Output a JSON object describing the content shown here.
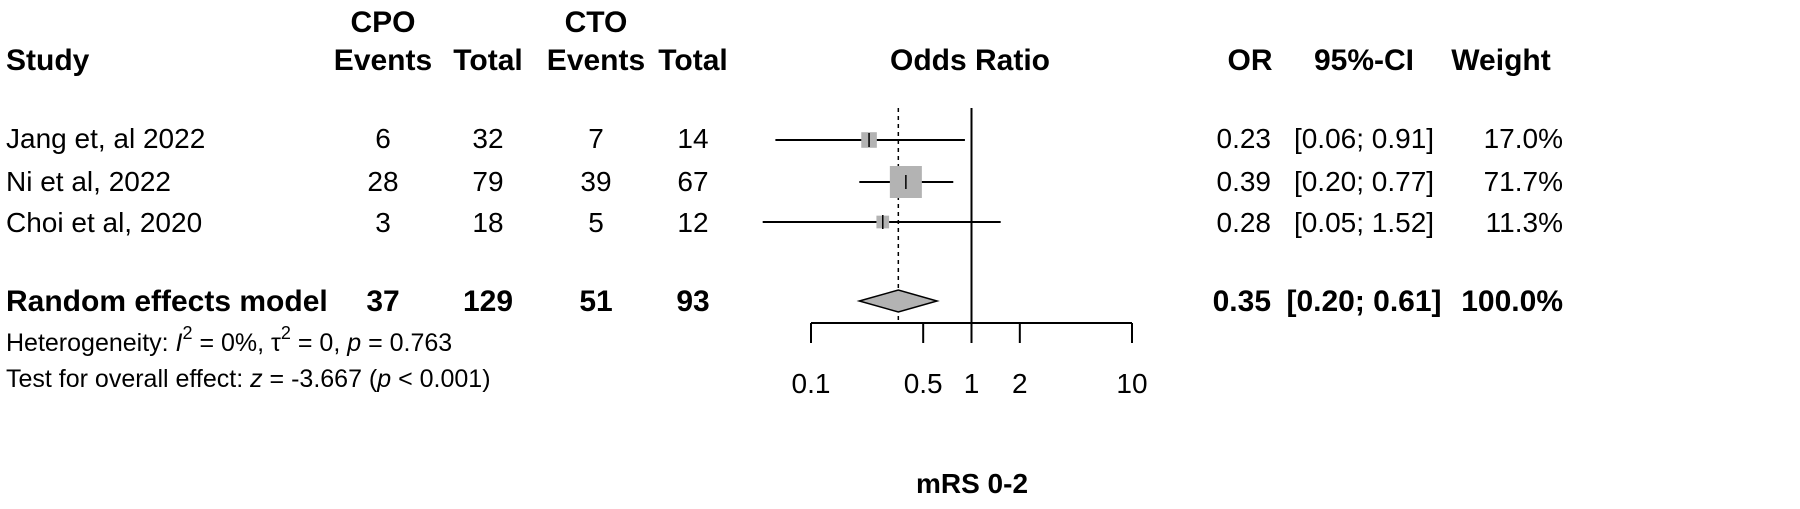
{
  "headers": {
    "study": "Study",
    "group1": "CPO",
    "group2": "CTO",
    "events": "Events",
    "total": "Total",
    "odds_ratio": "Odds Ratio",
    "or": "OR",
    "ci": "95%-CI",
    "weight": "Weight"
  },
  "studies": [
    {
      "name": "Jang et, al 2022",
      "e1": "6",
      "n1": "32",
      "e2": "7",
      "n2": "14",
      "or_text": "0.23",
      "ci_text": "[0.06; 0.91]",
      "weight": "17.0%"
    },
    {
      "name": "Ni et al, 2022",
      "e1": "28",
      "n1": "79",
      "e2": "39",
      "n2": "67",
      "or_text": "0.39",
      "ci_text": "[0.20; 0.77]",
      "weight": "71.7%"
    },
    {
      "name": "Choi et al, 2020",
      "e1": "3",
      "n1": "18",
      "e2": "5",
      "n2": "12",
      "or_text": "0.28",
      "ci_text": "[0.05; 1.52]",
      "weight": "11.3%"
    }
  ],
  "pooled": {
    "label": "Random effects model",
    "e1": "37",
    "n1": "129",
    "e2": "51",
    "n2": "93",
    "or_text": "0.35",
    "ci_text": "[0.20; 0.61]",
    "weight": "100.0%"
  },
  "heterogeneity": {
    "prefix": "Heterogeneity: ",
    "I_symbol": "I",
    "I_sup": "2",
    "I_value": " = 0%, ",
    "tau_symbol": "τ",
    "tau_sup": "2",
    "tau_value": " = 0, ",
    "p_symbol": "p",
    "p_value": " = 0.763"
  },
  "overall_effect": {
    "prefix": "Test for overall effect: ",
    "z_symbol": "z",
    "z_value": " = -3.667 (",
    "p_symbol": "p",
    "p_value": " < 0.001)"
  },
  "chart_data": {
    "type": "forest",
    "xlabel": "mRS 0-2",
    "x_scale": "log",
    "xlim": [
      0.1,
      10
    ],
    "x_ticks": [
      0.1,
      0.5,
      1,
      2,
      10
    ],
    "x_tick_labels": [
      "0.1",
      "0.5",
      "1",
      "2",
      "10"
    ],
    "null_line": 1,
    "pooled_reference_line": 0.35,
    "studies": [
      {
        "name": "Jang et, al 2022",
        "or": 0.23,
        "lower": 0.06,
        "upper": 0.91,
        "weight": 17.0
      },
      {
        "name": "Ni et al, 2022",
        "or": 0.39,
        "lower": 0.2,
        "upper": 0.77,
        "weight": 71.7
      },
      {
        "name": "Choi et al, 2020",
        "or": 0.28,
        "lower": 0.05,
        "upper": 1.52,
        "weight": 11.3
      }
    ],
    "pooled": {
      "name": "Random effects model",
      "or": 0.35,
      "lower": 0.2,
      "upper": 0.61
    },
    "colors": {
      "square": "#b3b3b3",
      "diamond": "#b3b3b3",
      "lines": "#000000"
    }
  }
}
